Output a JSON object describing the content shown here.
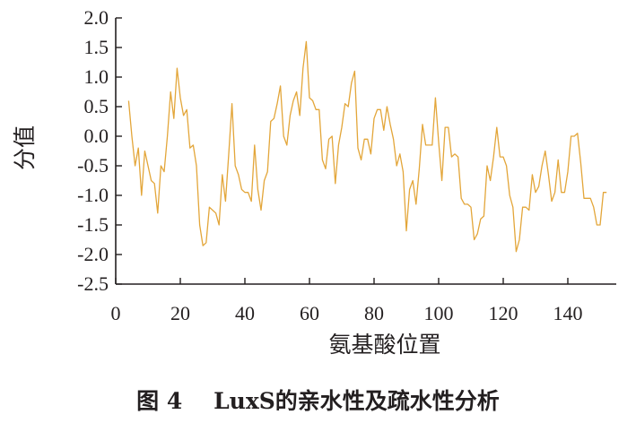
{
  "caption": "图 4    LuxS的亲水性及疏水性分析",
  "chart_data": {
    "type": "line",
    "xlabel": "氨基酸位置",
    "ylabel": "分值",
    "xlim": [
      0,
      155
    ],
    "ylim": [
      -2.5,
      2.0
    ],
    "x_ticks": [
      "0",
      "20",
      "40",
      "60",
      "80",
      "100",
      "120",
      "140"
    ],
    "y_ticks": [
      "2.0",
      "1.5",
      "1.0",
      "0.5",
      "0.0",
      "-0.5",
      "-1.0",
      "-1.5",
      "-2.0",
      "-2.5"
    ],
    "grid": false,
    "line_color": "#e3a63a",
    "series": [
      {
        "x": [
          4,
          5,
          6,
          7,
          8,
          9,
          10,
          11,
          12,
          13,
          14,
          15,
          16,
          17,
          18,
          19,
          20,
          21,
          22,
          23,
          24,
          25,
          26,
          27,
          28,
          29,
          30,
          31,
          32,
          33,
          34,
          35,
          36,
          37,
          38,
          39,
          40,
          41,
          42,
          43,
          44,
          45,
          46,
          47,
          48,
          49,
          50,
          51,
          52,
          53,
          54,
          55,
          56,
          57,
          58,
          59,
          60,
          61,
          62,
          63,
          64,
          65,
          66,
          67,
          68,
          69,
          70,
          71,
          72,
          73,
          74,
          75,
          76,
          77,
          78,
          79,
          80,
          81,
          82,
          83,
          84,
          85,
          86,
          87,
          88,
          89,
          90,
          91,
          92,
          93,
          94,
          95,
          96,
          97,
          98,
          99,
          100,
          101,
          102,
          103,
          104,
          105,
          106,
          107,
          108,
          109,
          110,
          111,
          112,
          113,
          114,
          115,
          116,
          117,
          118,
          119,
          120,
          121,
          122,
          123,
          124,
          125,
          126,
          127,
          128,
          129,
          130,
          131,
          132,
          133,
          134,
          135,
          136,
          137,
          138,
          139,
          140,
          141,
          142,
          143,
          144,
          145,
          146,
          147,
          148,
          149,
          150,
          151,
          152
        ],
        "values": [
          0.6,
          0.0,
          -0.5,
          -0.2,
          -1.0,
          -0.25,
          -0.5,
          -0.75,
          -0.8,
          -1.3,
          -0.5,
          -0.6,
          0.0,
          0.75,
          0.3,
          1.15,
          0.65,
          0.35,
          0.45,
          -0.2,
          -0.15,
          -0.5,
          -1.5,
          -1.85,
          -1.8,
          -1.2,
          -1.25,
          -1.3,
          -1.5,
          -0.65,
          -1.1,
          -0.3,
          0.55,
          -0.5,
          -0.65,
          -0.9,
          -0.95,
          -0.95,
          -1.1,
          -0.15,
          -0.9,
          -1.25,
          -0.75,
          -0.6,
          0.25,
          0.3,
          0.55,
          0.85,
          0.0,
          -0.15,
          0.35,
          0.6,
          0.75,
          0.35,
          1.15,
          1.6,
          0.65,
          0.6,
          0.45,
          0.45,
          -0.4,
          -0.55,
          -0.05,
          0.0,
          -0.8,
          -0.15,
          0.15,
          0.55,
          0.5,
          0.9,
          1.1,
          -0.2,
          -0.4,
          -0.05,
          -0.05,
          -0.3,
          0.3,
          0.45,
          0.45,
          0.1,
          0.5,
          0.2,
          -0.05,
          -0.5,
          -0.3,
          -0.6,
          -1.6,
          -0.9,
          -0.75,
          -1.15,
          -0.55,
          0.2,
          -0.15,
          -0.15,
          -0.15,
          0.65,
          -0.1,
          -0.75,
          0.15,
          0.15,
          -0.35,
          -0.3,
          -0.35,
          -1.05,
          -1.15,
          -1.15,
          -1.2,
          -1.75,
          -1.65,
          -1.4,
          -1.35,
          -0.5,
          -0.75,
          -0.35,
          0.15,
          -0.35,
          -0.35,
          -0.5,
          -1.0,
          -1.2,
          -1.95,
          -1.75,
          -1.2,
          -1.2,
          -1.25,
          -0.65,
          -0.95,
          -0.85,
          -0.5,
          -0.25,
          -0.65,
          -1.1,
          -0.95,
          -0.4,
          -0.95,
          -0.95,
          -0.6,
          0.0,
          0.0,
          0.05,
          -0.45,
          -1.05,
          -1.05,
          -1.05,
          -1.2,
          -1.5,
          -1.5,
          -0.95,
          -0.95
        ]
      }
    ]
  }
}
